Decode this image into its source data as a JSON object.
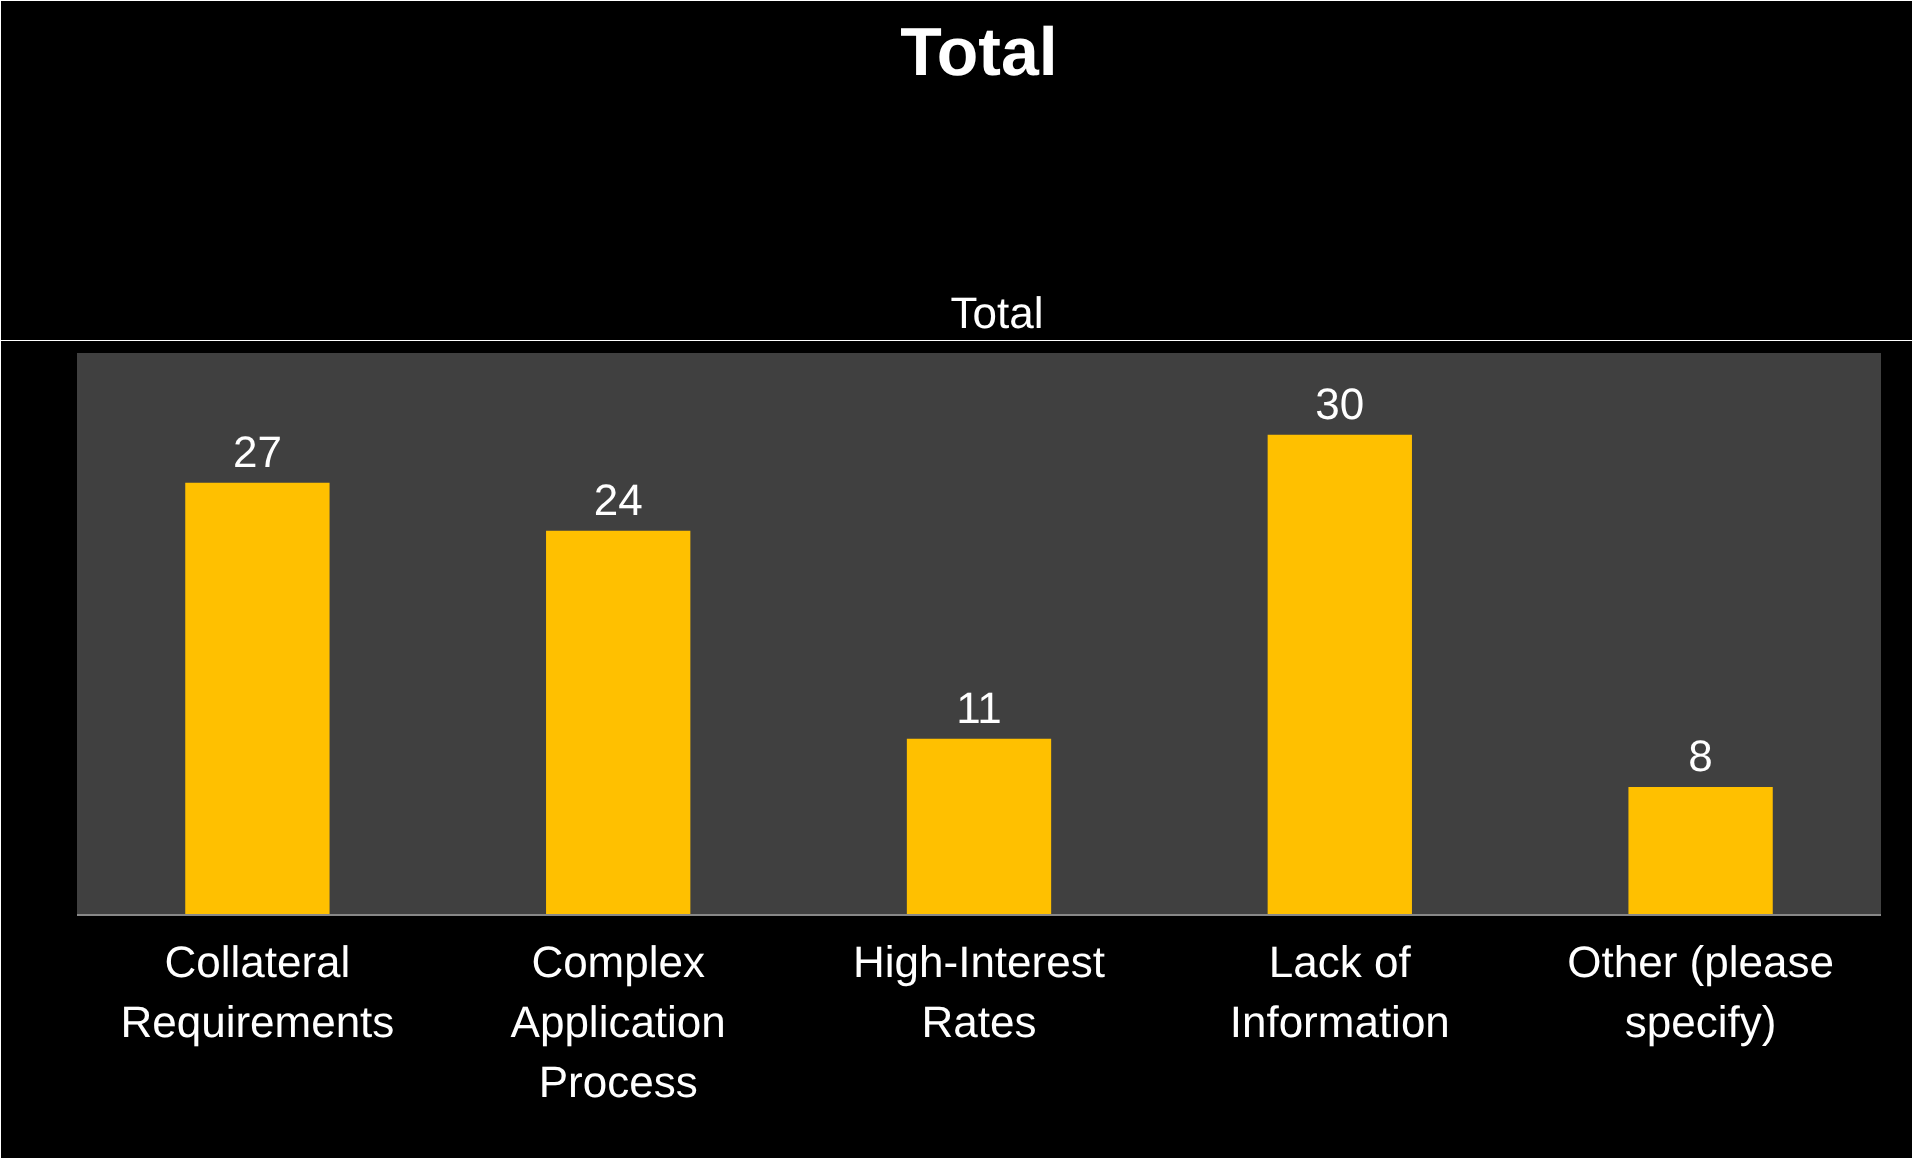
{
  "chart_data": {
    "type": "bar",
    "title": "Total",
    "categories": [
      "Collateral Requirements",
      "Complex Application Process",
      "High-Interest Rates",
      "Lack of Information",
      "Other (please specify)"
    ],
    "series": [
      {
        "name": "Total",
        "color": "#ffc000",
        "values": [
          27,
          24,
          11,
          30,
          8
        ]
      }
    ],
    "data_labels": true,
    "legend": "top",
    "grid": false
  }
}
